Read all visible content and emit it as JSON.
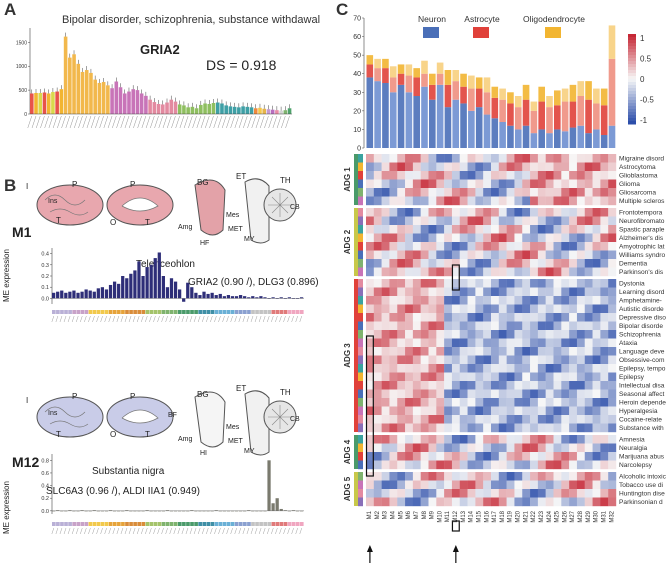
{
  "panel_a": {
    "letter": "A",
    "title": "Bipolar disorder, schizophrenia, substance withdawal",
    "gene": "GRIA2",
    "ds": "DS = 0.918",
    "y_ticks": [
      "1500",
      "1000",
      "500",
      "0"
    ]
  },
  "panel_b": {
    "letter": "B",
    "m1": {
      "label": "M1",
      "region": "Telenceohlon",
      "genes": "GRIA2 (0.90 /), DLG3 (0.896)",
      "ylabel": "ME expression",
      "y_ticks": [
        "0.4",
        "0.3",
        "0.2",
        "0.1",
        "0.0"
      ]
    },
    "m12": {
      "label": "M12",
      "region": "Substantia nigra",
      "genes": "SLC6A3 (0.96 /), ALDI IIA1 (0.949)",
      "ylabel": "ME expression",
      "y_ticks": [
        "0.8",
        "0.6",
        "0.4",
        "0.2",
        "0.0"
      ]
    },
    "brain_labels_top": [
      "I",
      "P",
      "P",
      "T",
      "O",
      "T",
      "BG",
      "ET",
      "TH",
      "Ins",
      "Amg",
      "HF",
      "Mes",
      "MET",
      "MY",
      "CB"
    ],
    "brain_labels_bottom": [
      "I",
      "P",
      "P",
      "T",
      "O",
      "T",
      "BG",
      "ET",
      "TH",
      "Ins",
      "Amg",
      "HI",
      "Mes",
      "MET",
      "MY",
      "CB",
      "BF"
    ]
  },
  "panel_c": {
    "letter": "C",
    "legend": [
      {
        "label": "Neuron",
        "color": "#4a6fb8"
      },
      {
        "label": "Astrocyte",
        "color": "#e0413a"
      },
      {
        "label": "Oligodendrocyte",
        "color": "#f2b531"
      }
    ],
    "bar_y_ticks": [
      "70",
      "60",
      "50",
      "40",
      "30",
      "20",
      "10",
      "0"
    ],
    "colorbar_ticks": [
      "1",
      "0.5",
      "0",
      "-0.5",
      "-1"
    ],
    "groups": [
      "ADG 1",
      "ADG 2",
      "ADG 3",
      "ADG 4",
      "ADG 5"
    ],
    "diseases": [
      "Migraine disord",
      "Astrocytoma",
      "Glioblastoma",
      "Glioma",
      "Gliosarcoma",
      "Multiple scleros",
      "Frontotempora",
      "Neurofibromato",
      "Spastic paraple",
      "Alzheimer's dis",
      "Amyotrophic lat",
      "Williams syndro",
      "Dementia",
      "Parkinson's dis",
      "Dystonia",
      "Learning disord",
      "Amphetamine-",
      "Autistic disorde",
      "Depressive diso",
      "Bipolar disorde",
      "Schizophrenia",
      "Ataxia",
      "Language deve",
      "Obsessive-com",
      "Epilepsy, tempo",
      "Epilepsy",
      "Intellectual disa",
      "Seasonal affect",
      "Heroin depende",
      "Hyperalgesia",
      "Cocaine-relate",
      "Substance with",
      "Amnesia",
      "Neuralgia",
      "Marijuana abus",
      "Narcolepsy",
      "Alcoholic intoxic",
      "Tobacco use di",
      "Huntington dise",
      "Parkinsonian d"
    ],
    "modules": [
      "M1",
      "M2",
      "M3",
      "M4",
      "M5",
      "M6",
      "M7",
      "M8",
      "M9",
      "M10",
      "M11",
      "M12",
      "M13",
      "M14",
      "M15",
      "M16",
      "M17",
      "M18",
      "M19",
      "M20",
      "M21",
      "M22",
      "M23",
      "M24",
      "M25",
      "M26",
      "M27",
      "M28",
      "M29",
      "M30",
      "M31",
      "M32"
    ],
    "arrows": [
      "M1",
      "M12"
    ]
  },
  "chart_data": [
    {
      "type": "bar",
      "title": "Bipolar disorder, schizophrenia, substance withdawal",
      "ylim": [
        0,
        1800
      ],
      "values": [
        430,
        440,
        440,
        450,
        430,
        460,
        470,
        520,
        1620,
        1180,
        1250,
        1050,
        880,
        920,
        860,
        720,
        650,
        670,
        600,
        540,
        680,
        560,
        430,
        470,
        520,
        500,
        430,
        380,
        300,
        250,
        210,
        200,
        240,
        300,
        260,
        200,
        180,
        140,
        150,
        120,
        190,
        220,
        210,
        230,
        240,
        220,
        180,
        160,
        150,
        140,
        160,
        150,
        140,
        120,
        130,
        110,
        100,
        90,
        80,
        70,
        80,
        120
      ]
    },
    {
      "type": "bar",
      "title": "M1",
      "ylim": [
        -0.05,
        0.45
      ],
      "values": [
        0.05,
        0.06,
        0.07,
        0.05,
        0.06,
        0.07,
        0.05,
        0.06,
        0.08,
        0.07,
        0.06,
        0.09,
        0.1,
        0.08,
        0.12,
        0.15,
        0.13,
        0.2,
        0.18,
        0.22,
        0.25,
        0.33,
        0.2,
        0.28,
        0.3,
        0.36,
        0.41,
        0.2,
        0.1,
        0.18,
        0.15,
        0.08,
        -0.03,
        0.14,
        0.1,
        0.05,
        0.03,
        0.06,
        0.04,
        0.05,
        0.03,
        0.04,
        0.02,
        0.03,
        0.02,
        0.02,
        0.03,
        0.02,
        0.01,
        0.02,
        0.01,
        0.02,
        0.01,
        0.0,
        0.01,
        0.0,
        0.01,
        0.0,
        0.01,
        0.0,
        0.0,
        0.01
      ]
    },
    {
      "type": "bar",
      "title": "M12",
      "ylim": [
        -0.05,
        0.9
      ],
      "values": [
        0.0,
        0.01,
        0.0,
        0.0,
        0.01,
        0.0,
        0.0,
        0.01,
        0.0,
        0.0,
        0.01,
        0.0,
        0.0,
        0.0,
        0.01,
        0.0,
        0.0,
        0.0,
        0.01,
        0.0,
        0.0,
        0.0,
        0.0,
        0.01,
        0.0,
        0.0,
        0.0,
        0.0,
        0.01,
        0.0,
        0.0,
        0.0,
        0.0,
        0.0,
        0.01,
        0.0,
        0.0,
        0.0,
        0.0,
        0.0,
        0.01,
        0.0,
        0.0,
        0.0,
        0.0,
        0.0,
        0.0,
        0.0,
        0.01,
        0.0,
        0.0,
        0.0,
        0.0,
        0.8,
        0.12,
        0.2,
        0.03,
        0.01,
        0.0,
        0.01,
        0.0,
        0.0
      ]
    },
    {
      "type": "bar",
      "title": "Cell-type composition per module",
      "categories": [
        "M1",
        "M2",
        "M3",
        "M4",
        "M5",
        "M6",
        "M7",
        "M8",
        "M9",
        "M10",
        "M11",
        "M12",
        "M13",
        "M14",
        "M15",
        "M16",
        "M17",
        "M18",
        "M19",
        "M20",
        "M21",
        "M22",
        "M23",
        "M24",
        "M25",
        "M26",
        "M27",
        "M28",
        "M29",
        "M30",
        "M31",
        "M32"
      ],
      "ylim": [
        0,
        70
      ],
      "series": [
        {
          "name": "Neuron",
          "values": [
            38,
            36,
            35,
            30,
            34,
            30,
            28,
            33,
            26,
            34,
            22,
            26,
            24,
            20,
            22,
            18,
            16,
            14,
            12,
            10,
            12,
            8,
            10,
            8,
            10,
            9,
            11,
            12,
            8,
            10,
            7,
            12
          ]
        },
        {
          "name": "Astrocyte",
          "values": [
            7,
            7,
            8,
            8,
            6,
            9,
            10,
            7,
            8,
            6,
            12,
            10,
            9,
            12,
            10,
            12,
            11,
            12,
            12,
            12,
            14,
            12,
            15,
            14,
            13,
            16,
            14,
            16,
            18,
            14,
            16,
            36
          ]
        },
        {
          "name": "Oligodendrocyte",
          "values": [
            5,
            5,
            5,
            6,
            5,
            6,
            5,
            7,
            6,
            6,
            8,
            6,
            7,
            7,
            6,
            8,
            6,
            6,
            6,
            6,
            8,
            5,
            8,
            6,
            8,
            7,
            9,
            8,
            10,
            8,
            9,
            18
          ]
        }
      ]
    }
  ]
}
